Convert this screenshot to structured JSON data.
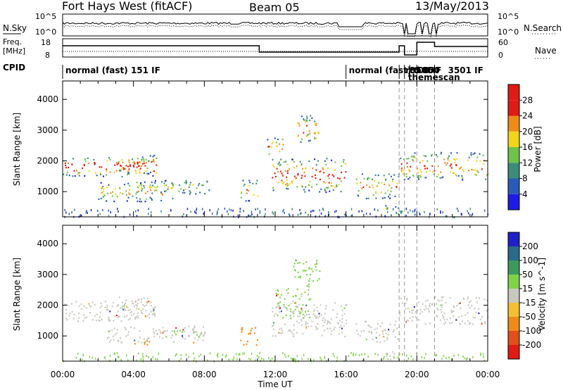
{
  "header": {
    "station": "Fort Hays West (fitACF)",
    "beam": "Beam 05",
    "date": "13/May/2013"
  },
  "param_panels": {
    "nsky_label": "N.Sky",
    "nsearch_label": "N.Search",
    "freq_label_1": "Freq.",
    "freq_label_2": "[MHz]",
    "nave_label": "Nave",
    "cpid_label": "CPID",
    "noise_ticks_left": [
      "10^5",
      "10^0"
    ],
    "noise_ticks_right": [
      "10^5",
      "10^0"
    ],
    "freq_ticks_left": [
      "18",
      "8"
    ],
    "nave_ticks_right": [
      "60",
      "0"
    ],
    "cpid_entries": [
      {
        "text": "normal (fast) 151 IF",
        "hour": 0.0
      },
      {
        "text": "normal (fast)",
        "hour": 16.0
      },
      {
        "text": "rtd",
        "hour": 19.2
      },
      {
        "text": "3505",
        "hour": 19.45
      },
      {
        "text": "6 15",
        "hour": 19.65
      },
      {
        "text": "00 IF",
        "hour": 19.9
      },
      {
        "text": "3501 IF",
        "hour": 21.6
      }
    ],
    "cpid_overlap_text": "themescan",
    "cpid_overlap_text2": "000"
  },
  "chart_data": [
    {
      "type": "heatmap",
      "name_role": "power-panel",
      "ylabel": "Slant Range [km]",
      "xlabel": "",
      "xlim": [
        0,
        24
      ],
      "ylim": [
        180,
        4600
      ],
      "yticks": [
        1000,
        2000,
        3000,
        4000
      ],
      "colorbar_label": "Power [dB]",
      "colorbar_ticks": [
        "4",
        "8",
        "12",
        "16",
        "20",
        "24",
        "28"
      ],
      "colorbar_colors": [
        "#1c1ce6",
        "#2a5bb8",
        "#3c8c7a",
        "#6fc24a",
        "#f3d51c",
        "#ef8a18",
        "#e01a14"
      ],
      "dashed_lines_hours": [
        19.0,
        19.3,
        20.0,
        21.0
      ],
      "blobs": [
        {
          "t0": 0.0,
          "t1": 5.3,
          "r0": 1500,
          "r1": 2150,
          "intensity": 0.9
        },
        {
          "t0": 3.0,
          "t1": 5.3,
          "r0": 1600,
          "r1": 2200,
          "intensity": 0.8
        },
        {
          "t0": 2.0,
          "t1": 6.3,
          "r0": 700,
          "r1": 1350,
          "intensity": 0.55
        },
        {
          "t0": 4.0,
          "t1": 8.3,
          "r0": 950,
          "r1": 1400,
          "intensity": 0.35
        },
        {
          "t0": 10.0,
          "t1": 11.0,
          "r0": 700,
          "r1": 1400,
          "intensity": 0.6
        },
        {
          "t0": 11.8,
          "t1": 16.0,
          "r0": 1000,
          "r1": 2100,
          "intensity": 0.85
        },
        {
          "t0": 13.0,
          "t1": 14.5,
          "r0": 2600,
          "r1": 3500,
          "intensity": 0.7
        },
        {
          "t0": 11.5,
          "t1": 12.5,
          "r0": 2200,
          "r1": 2800,
          "intensity": 0.6
        },
        {
          "t0": 16.5,
          "t1": 19.0,
          "r0": 800,
          "r1": 1600,
          "intensity": 0.55
        },
        {
          "t0": 18.0,
          "t1": 19.0,
          "r0": 200,
          "r1": 600,
          "intensity": 0.45
        },
        {
          "t0": 19.0,
          "t1": 24.0,
          "r0": 1400,
          "r1": 2300,
          "intensity": 0.75
        }
      ]
    },
    {
      "type": "heatmap",
      "name_role": "velocity-panel",
      "ylabel": "Slant Range [km]",
      "xlabel": "Time UT",
      "xlim": [
        0,
        24
      ],
      "ylim": [
        180,
        4600
      ],
      "xticks": [
        "00:00",
        "04:00",
        "08:00",
        "12:00",
        "16:00",
        "20:00",
        "00:00"
      ],
      "yticks": [
        1000,
        2000,
        3000,
        4000
      ],
      "colorbar_label": "Velocity [m s^-1]",
      "colorbar_ticks": [
        "200",
        "100",
        "50",
        "15",
        "-15",
        "-50",
        "-100",
        "-200"
      ],
      "colorbar_colors": [
        "#2020c8",
        "#2a6a8a",
        "#3c9a5a",
        "#7fd24a",
        "#c8c8c0",
        "#f5c030",
        "#ef8a18",
        "#e05018",
        "#e01a14"
      ],
      "dashed_lines_hours": [
        19.0,
        19.3,
        20.0,
        21.0
      ],
      "blobs": [
        {
          "t0": 0.0,
          "t1": 5.3,
          "r0": 1500,
          "r1": 2150,
          "color": "#c8c8c0"
        },
        {
          "t0": 3.0,
          "t1": 5.3,
          "r0": 1600,
          "r1": 2300,
          "color": "#c8c8c0"
        },
        {
          "t0": 2.5,
          "t1": 8.0,
          "r0": 800,
          "r1": 1350,
          "color": "#c8c8c0"
        },
        {
          "t0": 4.0,
          "t1": 5.0,
          "r0": 700,
          "r1": 900,
          "color": "#ef8a18"
        },
        {
          "t0": 6.0,
          "t1": 8.0,
          "r0": 1000,
          "r1": 1200,
          "color": "#7fd24a"
        },
        {
          "t0": 10.0,
          "t1": 11.0,
          "r0": 700,
          "r1": 1300,
          "color": "#ef8a18"
        },
        {
          "t0": 11.8,
          "t1": 16.0,
          "r0": 1000,
          "r1": 2100,
          "color": "#c8c8c0"
        },
        {
          "t0": 12.0,
          "t1": 14.0,
          "r0": 1600,
          "r1": 2600,
          "color": "#7fd24a"
        },
        {
          "t0": 13.0,
          "t1": 14.5,
          "r0": 2600,
          "r1": 3500,
          "color": "#7fd24a"
        },
        {
          "t0": 16.5,
          "t1": 19.0,
          "r0": 800,
          "r1": 1500,
          "color": "#c8c8c0"
        },
        {
          "t0": 18.0,
          "t1": 19.0,
          "r0": 250,
          "r1": 550,
          "color": "#c8c8c0"
        },
        {
          "t0": 19.0,
          "t1": 24.0,
          "r0": 1400,
          "r1": 2300,
          "color": "#c8c8c0"
        }
      ]
    }
  ]
}
